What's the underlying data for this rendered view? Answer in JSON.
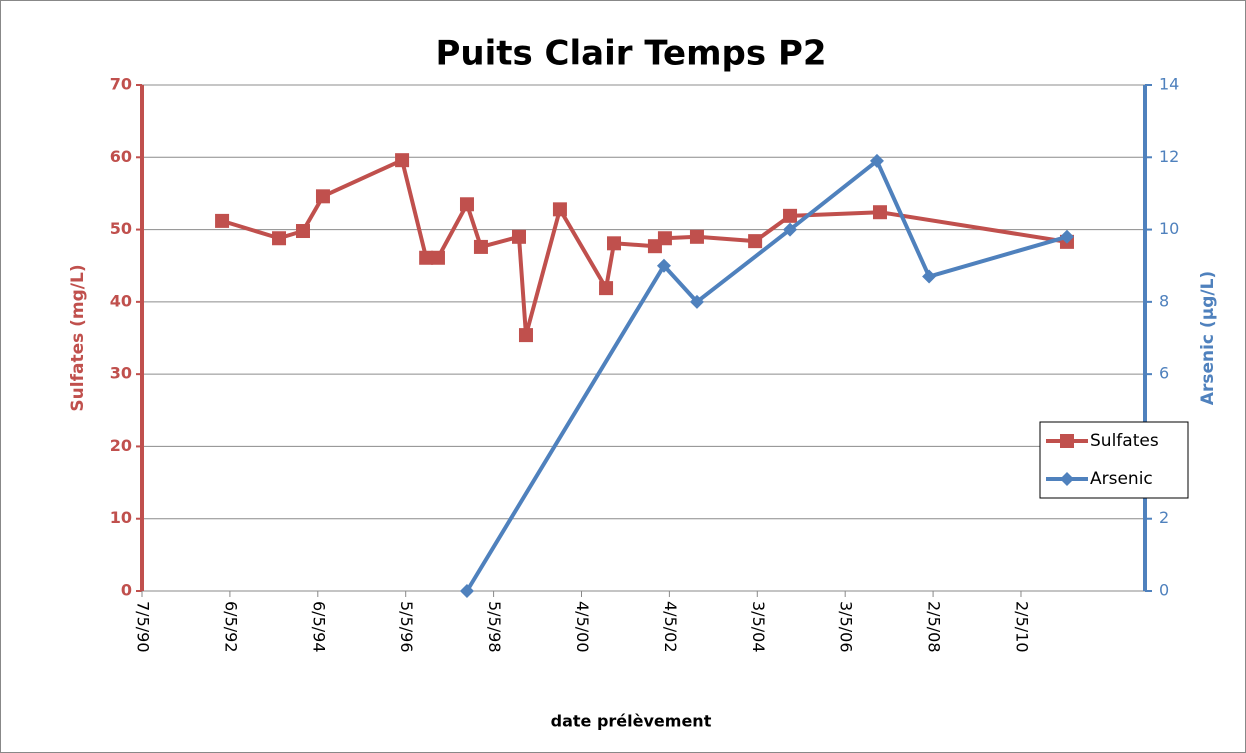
{
  "chart_data": {
    "type": "line",
    "title": "Puits Clair Temps P2",
    "x_label": "date prélèvement",
    "y_label": "Sulfates (mg/L)",
    "y2_label": "Arsenic (µg/L)",
    "xlim": [
      "1990-05-07",
      "2013-02-25"
    ],
    "xticks": [
      {
        "value": "1990-05-07",
        "label": "7/5/90"
      },
      {
        "value": "1992-05-06",
        "label": "6/5/92"
      },
      {
        "value": "1994-05-06",
        "label": "6/5/94"
      },
      {
        "value": "1996-05-05",
        "label": "5/5/96"
      },
      {
        "value": "1998-05-05",
        "label": "5/5/98"
      },
      {
        "value": "2000-05-04",
        "label": "4/5/00"
      },
      {
        "value": "2002-05-04",
        "label": "4/5/02"
      },
      {
        "value": "2004-05-03",
        "label": "3/5/04"
      },
      {
        "value": "2006-05-03",
        "label": "3/5/06"
      },
      {
        "value": "2008-05-02",
        "label": "2/5/08"
      },
      {
        "value": "2010-05-02",
        "label": "2/5/10"
      }
    ],
    "ylim": [
      0,
      70
    ],
    "yticks": [
      0,
      10,
      20,
      30,
      40,
      50,
      60,
      70
    ],
    "y2lim": [
      0,
      14
    ],
    "y2ticks": [
      0,
      2,
      4,
      6,
      8,
      10,
      12,
      14
    ],
    "grid": true,
    "legend": "right",
    "series": [
      {
        "name": "Sulfates",
        "color": "#c0504d",
        "marker": "square",
        "x": [
          "1992-03-02",
          "1993-06-18",
          "1994-01-03",
          "1994-06-18",
          "1996-04-05",
          "1996-10-22",
          "1997-01-28",
          "1997-09-26",
          "1998-01-20",
          "1998-12-02",
          "1999-01-29",
          "1999-11-07",
          "2000-11-24",
          "2001-01-29",
          "2002-01-04",
          "2002-03-28",
          "2002-12-19",
          "2004-04-15",
          "2005-01-30",
          "2007-02-16",
          "2011-05-19"
        ],
        "values": [
          51.2,
          48.8,
          49.8,
          54.6,
          59.6,
          46.1,
          46.1,
          53.5,
          47.6,
          49.0,
          35.4,
          52.8,
          41.9,
          48.1,
          47.7,
          48.8,
          49.0,
          48.4,
          51.9,
          52.4,
          48.3
        ]
      },
      {
        "name": "Arsenic",
        "color": "#4f81bd",
        "marker": "diamond",
        "axis": "y2",
        "x": [
          "1997-09-26",
          "2002-03-20",
          "2002-12-19",
          "2005-01-30",
          "2007-01-22",
          "2008-03-30",
          "2011-05-19"
        ],
        "values": [
          0,
          9.0,
          8.0,
          10.0,
          11.9,
          8.7,
          9.8
        ]
      }
    ]
  }
}
